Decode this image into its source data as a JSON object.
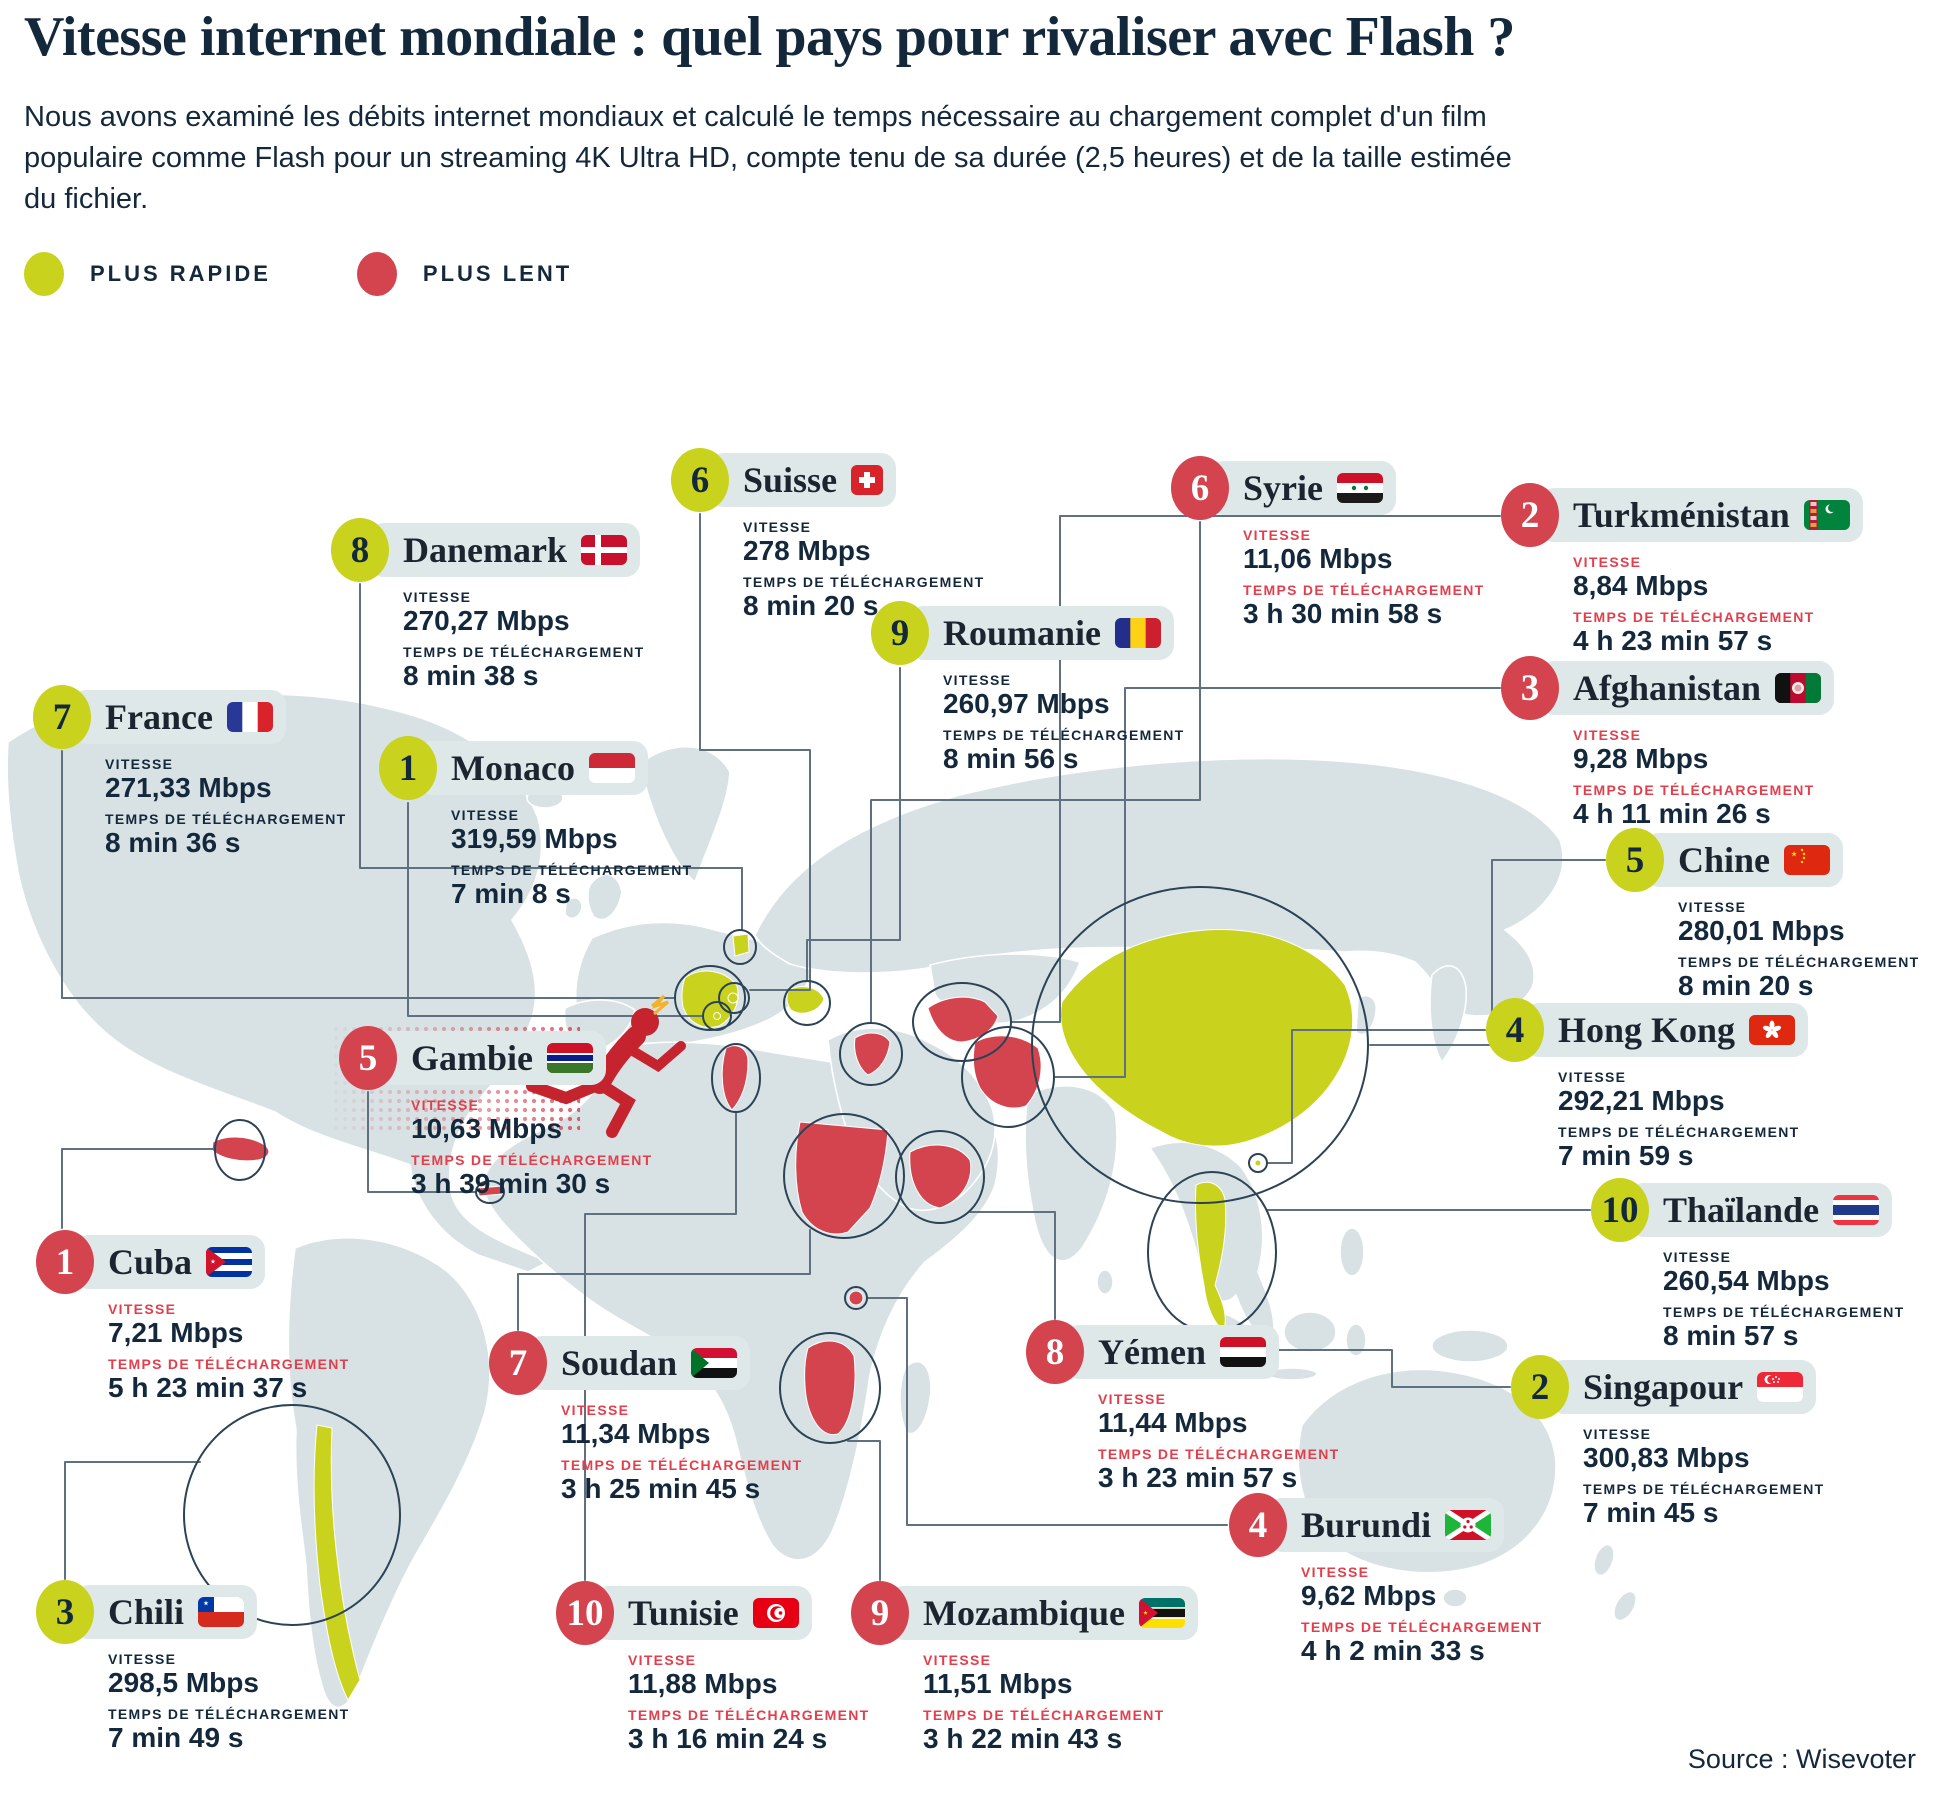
{
  "title": "Vitesse internet mondiale : quel pays pour rivaliser avec Flash ?",
  "intro": "Nous avons examiné les débits internet mondiaux et calculé le temps nécessaire au chargement complet d'un film populaire comme Flash pour un streaming 4K Ultra HD, compte tenu de sa durée (2,5 heures) et de la taille estimée du fichier.",
  "legend": {
    "fast_label": "PLUS RAPIDE",
    "slow_label": "PLUS LENT"
  },
  "labels": {
    "speed": "VITESSE",
    "time": "TEMPS DE TÉLÉCHARGEMENT"
  },
  "source": "Source : Wisevoter",
  "colors": {
    "fast": "#c9d21d",
    "slow": "#d4444f",
    "navy_text": "#14283c",
    "slow_label_red": "#e23f4d",
    "pill_background": "#dee8e8",
    "map_land": "#d8e2e4",
    "connector": "#5f7181"
  },
  "countries": [
    {
      "id": "monaco",
      "group": "fast",
      "rank": 1,
      "name": "Monaco",
      "flag_icon": "monaco-flag-icon",
      "speed": "319,59 Mbps",
      "time": "7 min 8 s"
    },
    {
      "id": "singapour",
      "group": "fast",
      "rank": 2,
      "name": "Singapour",
      "flag_icon": "singapore-flag-icon",
      "speed": "300,83 Mbps",
      "time": "7 min 45 s"
    },
    {
      "id": "chili",
      "group": "fast",
      "rank": 3,
      "name": "Chili",
      "flag_icon": "chile-flag-icon",
      "speed": "298,5 Mbps",
      "time": "7 min 49 s"
    },
    {
      "id": "hongkong",
      "group": "fast",
      "rank": 4,
      "name": "Hong Kong",
      "flag_icon": "hong-kong-flag-icon",
      "speed": "292,21 Mbps",
      "time": "7 min 59 s"
    },
    {
      "id": "chine",
      "group": "fast",
      "rank": 5,
      "name": "Chine",
      "flag_icon": "china-flag-icon",
      "speed": "280,01 Mbps",
      "time": "8 min 20 s"
    },
    {
      "id": "suisse",
      "group": "fast",
      "rank": 6,
      "name": "Suisse",
      "flag_icon": "switzerland-flag-icon",
      "speed": "278 Mbps",
      "time": "8 min 20 s"
    },
    {
      "id": "france",
      "group": "fast",
      "rank": 7,
      "name": "France",
      "flag_icon": "france-flag-icon",
      "speed": "271,33 Mbps",
      "time": "8 min 36 s"
    },
    {
      "id": "danemark",
      "group": "fast",
      "rank": 8,
      "name": "Danemark",
      "flag_icon": "denmark-flag-icon",
      "speed": "270,27 Mbps",
      "time": "8 min 38 s"
    },
    {
      "id": "roumanie",
      "group": "fast",
      "rank": 9,
      "name": "Roumanie",
      "flag_icon": "romania-flag-icon",
      "speed": "260,97 Mbps",
      "time": "8 min 56 s"
    },
    {
      "id": "thailande",
      "group": "fast",
      "rank": 10,
      "name": "Thaïlande",
      "flag_icon": "thailand-flag-icon",
      "speed": "260,54 Mbps",
      "time": "8 min 57 s"
    },
    {
      "id": "cuba",
      "group": "slow",
      "rank": 1,
      "name": "Cuba",
      "flag_icon": "cuba-flag-icon",
      "speed": "7,21 Mbps",
      "time": "5 h 23 min 37 s"
    },
    {
      "id": "turkmenistan",
      "group": "slow",
      "rank": 2,
      "name": "Turkménistan",
      "flag_icon": "turkmenistan-flag-icon",
      "speed": "8,84 Mbps",
      "time": "4 h 23 min 57 s"
    },
    {
      "id": "afghanistan",
      "group": "slow",
      "rank": 3,
      "name": "Afghanistan",
      "flag_icon": "afghanistan-flag-icon",
      "speed": "9,28 Mbps",
      "time": "4 h 11 min 26 s"
    },
    {
      "id": "burundi",
      "group": "slow",
      "rank": 4,
      "name": "Burundi",
      "flag_icon": "burundi-flag-icon",
      "speed": "9,62 Mbps",
      "time": "4 h 2 min 33 s"
    },
    {
      "id": "gambie",
      "group": "slow",
      "rank": 5,
      "name": "Gambie",
      "flag_icon": "gambia-flag-icon",
      "speed": "10,63 Mbps",
      "time": "3 h 39 min 30 s"
    },
    {
      "id": "syrie",
      "group": "slow",
      "rank": 6,
      "name": "Syrie",
      "flag_icon": "syria-flag-icon",
      "speed": "11,06 Mbps",
      "time": "3 h 30 min 58 s"
    },
    {
      "id": "soudan",
      "group": "slow",
      "rank": 7,
      "name": "Soudan",
      "flag_icon": "sudan-flag-icon",
      "speed": "11,34 Mbps",
      "time": "3 h 25 min 45 s"
    },
    {
      "id": "yemen",
      "group": "slow",
      "rank": 8,
      "name": "Yémen",
      "flag_icon": "yemen-flag-icon",
      "speed": "11,44 Mbps",
      "time": "3 h 23 min 57 s"
    },
    {
      "id": "mozambique",
      "group": "slow",
      "rank": 9,
      "name": "Mozambique",
      "flag_icon": "mozambique-flag-icon",
      "speed": "11,51 Mbps",
      "time": "3 h 22 min 43 s"
    },
    {
      "id": "tunisie",
      "group": "slow",
      "rank": 10,
      "name": "Tunisie",
      "flag_icon": "tunisia-flag-icon",
      "speed": "11,88 Mbps",
      "time": "3 h 16 min 24 s"
    }
  ]
}
